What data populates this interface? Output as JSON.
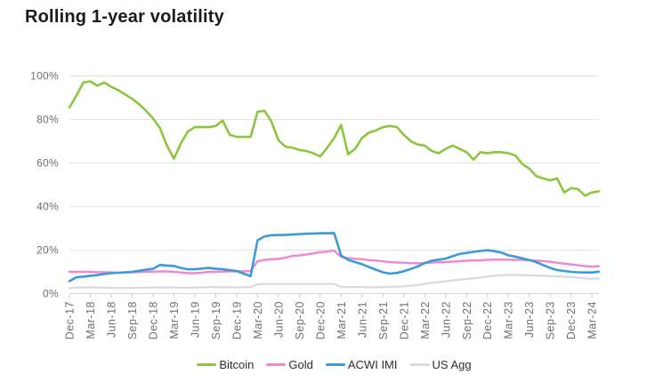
{
  "title": "Rolling 1-year volatility",
  "colors": {
    "title": "#1b1b1b",
    "axis_label": "#6f6f6f",
    "gridline": "#e2e2e2",
    "axis_line": "#d9d9d9",
    "tick": "#c9c9c9",
    "legend_label": "#2d2d2d",
    "background": "#ffffff",
    "bitcoin": "#8cc63f",
    "gold": "#f186d3",
    "acwi_imi": "#3b9ad8",
    "us_agg": "#d8d9e1"
  },
  "chart_data": {
    "type": "line",
    "title": "Rolling 1-year volatility",
    "xlabel": "",
    "ylabel": "",
    "grid": "horizontal",
    "legend_position": "bottom-center",
    "y_axis": {
      "min": 0,
      "max": 100,
      "tick_values": [
        100,
        80,
        60,
        40,
        20,
        0
      ],
      "tick_labels": [
        "100%",
        "80%",
        "60%",
        "40%",
        "20%",
        "0%"
      ]
    },
    "x_axis": {
      "unit": "months",
      "start": "Dec-17",
      "end": "Mar-24",
      "tick_every_months": 3,
      "tick_labels": [
        "Dec-17",
        "Mar-18",
        "Jun-18",
        "Sep-18",
        "Dec-18",
        "Mar-19",
        "Jun-19",
        "Sep-19",
        "Dec-19",
        "Mar-20",
        "Jun-20",
        "Sep-20",
        "Dec-20",
        "Mar-21",
        "Jun-21",
        "Sep-21",
        "Dec-21",
        "Mar-22",
        "Jun-22",
        "Sep-22",
        "Dec-22",
        "Mar-23",
        "Jun-23",
        "Sep-23",
        "Dec-23",
        "Mar-24"
      ]
    },
    "series": [
      {
        "name": "Bitcoin",
        "color": "#8cc63f",
        "line_width": 2.6,
        "values": [
          85.5,
          91,
          97,
          97.5,
          95.5,
          97,
          95,
          93.5,
          91.5,
          89.5,
          87,
          84,
          80.5,
          76,
          68,
          62,
          69,
          74.5,
          76.5,
          76.5,
          76.5,
          77,
          79.5,
          73,
          72,
          72,
          72,
          83.5,
          84,
          79,
          70.5,
          67.5,
          67,
          66,
          65.5,
          64.5,
          63,
          67,
          71.5,
          77.5,
          64,
          66.5,
          71.5,
          74,
          75,
          76.5,
          77,
          76.5,
          73,
          70,
          68.5,
          68,
          65.5,
          64.5,
          66.5,
          68,
          66.5,
          65,
          61.5,
          65,
          64.5,
          65,
          65,
          64.5,
          63.5,
          59.5,
          57.5,
          54,
          53,
          52,
          53,
          46.5,
          48.5,
          48,
          45,
          46.5,
          47
        ]
      },
      {
        "name": "Gold",
        "color": "#f186d3",
        "line_width": 2.4,
        "values": [
          10,
          10,
          10,
          10,
          9.8,
          9.8,
          9.7,
          9.6,
          9.8,
          9.8,
          9.9,
          10,
          10.1,
          10.2,
          10.2,
          10,
          9.7,
          9.4,
          9.4,
          9.6,
          10,
          10,
          10.1,
          10.2,
          10.2,
          10.2,
          10.4,
          14.8,
          15.5,
          15.8,
          16,
          16.5,
          17.3,
          17.5,
          18,
          18.5,
          19,
          19.3,
          19.8,
          16.8,
          16.3,
          16,
          15.8,
          15.4,
          15.2,
          14.8,
          14.5,
          14.3,
          14.2,
          14,
          13.9,
          14.1,
          14.3,
          14.4,
          14.5,
          14.7,
          14.9,
          15.1,
          15.2,
          15.3,
          15.5,
          15.6,
          15.6,
          15.6,
          15.5,
          15.5,
          15.4,
          15.2,
          15,
          14.6,
          14.2,
          13.8,
          13.4,
          13,
          12.6,
          12.4,
          12.6
        ]
      },
      {
        "name": "ACWI IMI",
        "color": "#3b9ad8",
        "line_width": 2.6,
        "values": [
          5.7,
          7.5,
          7.8,
          8.2,
          8.5,
          9,
          9.4,
          9.6,
          9.7,
          10,
          10.5,
          11,
          11.4,
          13.2,
          12.9,
          12.7,
          11.8,
          11.2,
          11.2,
          11.5,
          11.8,
          11.4,
          11.2,
          10.8,
          10.4,
          9.2,
          8,
          24.5,
          26.3,
          26.8,
          26.9,
          27,
          27.2,
          27.3,
          27.5,
          27.6,
          27.7,
          27.7,
          27.8,
          17.5,
          15.5,
          14.5,
          13.5,
          12.2,
          11,
          9.8,
          9.2,
          9.5,
          10.3,
          11.3,
          12.5,
          14,
          15.1,
          15.6,
          16.1,
          17.2,
          18.2,
          18.7,
          19.2,
          19.6,
          19.9,
          19.5,
          18.8,
          17.6,
          17,
          16.2,
          15.4,
          14.5,
          13.1,
          11.8,
          10.8,
          10.4,
          10,
          9.8,
          9.7,
          9.7,
          10.1
        ]
      },
      {
        "name": "US Agg",
        "color": "#d8d9e1",
        "line_width": 2.2,
        "values": [
          2.5,
          2.8,
          2.8,
          2.8,
          2.8,
          2.7,
          2.7,
          2.6,
          2.6,
          2.6,
          2.7,
          2.7,
          2.8,
          2.8,
          2.8,
          2.8,
          2.7,
          2.7,
          2.8,
          2.9,
          3,
          3,
          2.9,
          2.9,
          2.9,
          2.9,
          3,
          4.3,
          4.4,
          4.4,
          4.4,
          4.4,
          4.4,
          4.4,
          4.4,
          4.4,
          4.4,
          4.4,
          4.4,
          3.1,
          3,
          3,
          3,
          2.9,
          2.9,
          3,
          3.1,
          3.2,
          3.3,
          3.6,
          3.9,
          4.5,
          4.9,
          5.3,
          5.7,
          6.1,
          6.4,
          6.7,
          7.1,
          7.4,
          7.8,
          8.2,
          8.5,
          8.6,
          8.6,
          8.5,
          8.4,
          8.3,
          8.2,
          8,
          7.9,
          7.8,
          7.6,
          7.3,
          7,
          6.8,
          7
        ]
      }
    ]
  }
}
